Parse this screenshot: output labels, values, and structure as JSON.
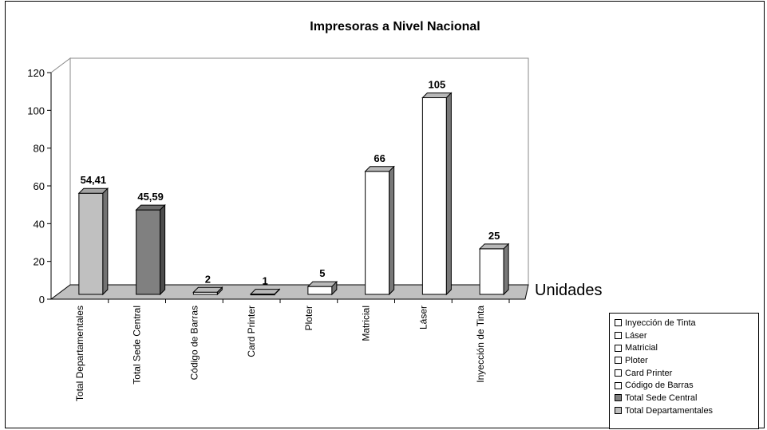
{
  "chart_data": {
    "type": "bar",
    "title": "Impresoras a Nivel Nacional",
    "series_axis_label": "Unidades",
    "ylim": [
      0,
      120
    ],
    "yticks": [
      "0",
      "20",
      "40",
      "60",
      "80",
      "100",
      "120"
    ],
    "categories": [
      "Total Departamentales",
      "Total Sede Central",
      "Código de Barras",
      "Card Printer",
      "Ploter",
      "Matricial",
      "Láser",
      "Inyección de Tinta"
    ],
    "values": [
      54.41,
      45.59,
      2,
      1,
      5,
      66,
      105,
      25
    ],
    "value_labels": [
      "54,41",
      "45,59",
      "2",
      "1",
      "5",
      "66",
      "105",
      "25"
    ],
    "colors": [
      "#c0c0c0",
      "#808080",
      "#ffffff",
      "#ffffff",
      "#ffffff",
      "#ffffff",
      "#ffffff",
      "#ffffff"
    ],
    "legend": {
      "placement": "bottom-right",
      "items": [
        {
          "label": "Inyección de Tinta",
          "color": "#ffffff"
        },
        {
          "label": "Láser",
          "color": "#ffffff"
        },
        {
          "label": "Matricial",
          "color": "#ffffff"
        },
        {
          "label": "Ploter",
          "color": "#ffffff"
        },
        {
          "label": "Card Printer",
          "color": "#ffffff"
        },
        {
          "label": "Código de Barras",
          "color": "#ffffff"
        },
        {
          "label": "Total Sede Central",
          "color": "#808080"
        },
        {
          "label": "Total Departamentales",
          "color": "#c0c0c0"
        }
      ]
    },
    "grid": false
  }
}
